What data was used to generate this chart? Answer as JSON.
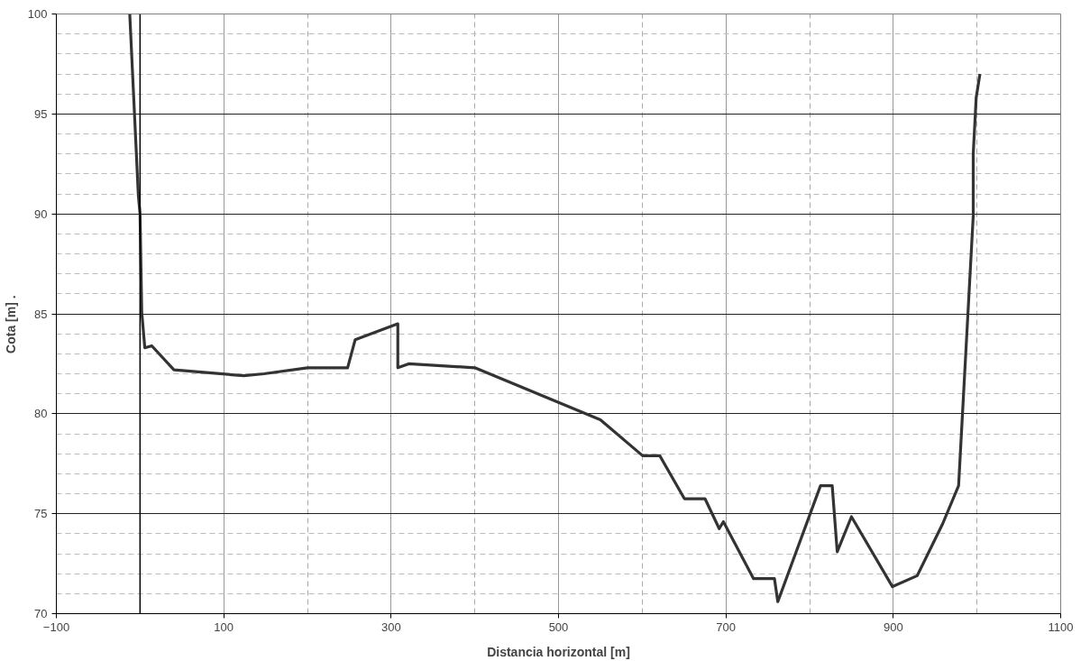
{
  "chart_data": {
    "type": "line",
    "xlabel": "Distancia horizontal [m]",
    "ylabel": "Cota [m]       .",
    "x": [
      -12.3,
      -2,
      0,
      2,
      5.7,
      14,
      40.5,
      124,
      148,
      200,
      248,
      257,
      308,
      308,
      321,
      400,
      550,
      600.5,
      621,
      650.4,
      675,
      692,
      697,
      733,
      758,
      762,
      813,
      827,
      833,
      850,
      899,
      928.6,
      959,
      978,
      995.5,
      995.5,
      999,
      1003.5
    ],
    "series": [
      {
        "color": "#333333",
        "values": [
          100,
          90.9,
          90,
          85.1,
          83.3,
          83.4,
          82.2,
          81.9,
          82.0,
          82.3,
          82.3,
          83.7,
          84.5,
          82.3,
          82.5,
          82.3,
          79.7,
          77.9,
          77.9,
          75.75,
          75.75,
          74.25,
          74.6,
          71.75,
          71.75,
          70.6,
          76.4,
          76.4,
          73.1,
          74.85,
          71.35,
          71.9,
          74.5,
          76.4,
          89.9,
          93.0,
          95.8,
          97.0
        ]
      }
    ],
    "xlim": [
      -100,
      1100
    ],
    "ylim": [
      70,
      100
    ],
    "xticks": [
      -100,
      100,
      300,
      500,
      700,
      900,
      1100
    ],
    "yticks": [
      70,
      75,
      80,
      85,
      90,
      95,
      100
    ],
    "ref_lines": [
      {
        "axis": "x",
        "value": 0,
        "color": "#000000"
      }
    ],
    "grid": true,
    "marker": "none",
    "line_style": "solid"
  }
}
